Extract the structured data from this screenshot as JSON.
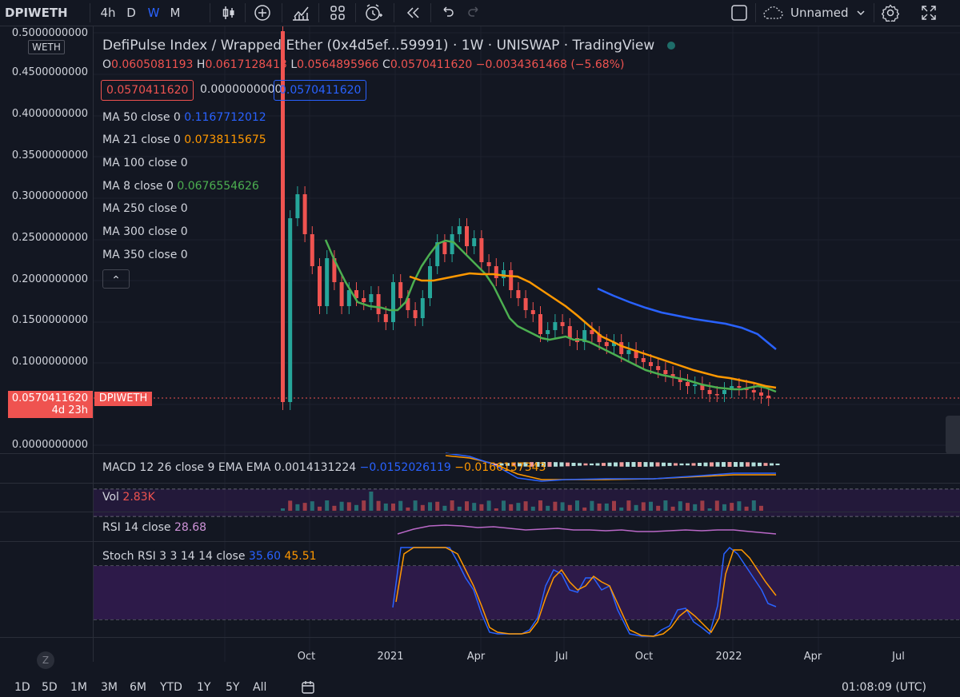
{
  "toolbar": {
    "symbol": "DPIWETH",
    "intervals": [
      "4h",
      "D",
      "W",
      "M"
    ],
    "active_interval": "W",
    "layout_name": "Unnamed"
  },
  "legend": {
    "title": "DefiPulse Index / Wrapped Ether (0x4d5ef...59991) · 1W · UNISWAP · TradingView",
    "ohlc": {
      "o_label": "O",
      "o": "0.0605081193",
      "h_label": "H",
      "h": "0.0617128413",
      "l_label": "L",
      "l": "0.0564895966",
      "c_label": "C",
      "c": "0.0570411620",
      "change": "−0.0034361468 (−5.68%)"
    },
    "bid": "0.0570411620",
    "spread": "0.0000000000",
    "ask": "0.0570411620",
    "indicators": [
      {
        "label": "MA 50 close 0",
        "value": "0.1167712012",
        "color": "#2962ff"
      },
      {
        "label": "MA 21 close 0",
        "value": "0.0738115675",
        "color": "#ff9800"
      },
      {
        "label": "MA 100 close 0",
        "value": "",
        "color": "#d1d4dc"
      },
      {
        "label": "MA 8 close 0",
        "value": "0.0676554626",
        "color": "#4caf50"
      },
      {
        "label": "MA 250 close 0",
        "value": "",
        "color": "#d1d4dc"
      },
      {
        "label": "MA 300 close 0",
        "value": "",
        "color": "#d1d4dc"
      },
      {
        "label": "MA 350 close 0",
        "value": "",
        "color": "#d1d4dc"
      }
    ],
    "collapse_glyph": "⌃"
  },
  "price_axis": {
    "currency": "WETH",
    "ticks": [
      "0.5000000000",
      "0.4500000000",
      "0.4000000000",
      "0.3500000000",
      "0.3000000000",
      "0.2500000000",
      "0.2000000000",
      "0.1500000000",
      "0.1000000000",
      "0.0570411620",
      "0.0000000000"
    ],
    "last_price_label": "0.0570411620",
    "countdown": "4d 23h",
    "series_tag": "DPIWETH"
  },
  "time_axis": {
    "ticks": [
      "Oct",
      "2021",
      "Apr",
      "Jul",
      "Oct",
      "2022",
      "Apr",
      "Jul"
    ]
  },
  "macd": {
    "label": "MACD 12 26 close 9 EMA EMA",
    "v1": "0.0014131224",
    "v2": "−0.0152026119",
    "v3": "−0.0166157343"
  },
  "volume": {
    "label": "Vol",
    "value": "2.83K"
  },
  "rsi": {
    "label": "RSI 14 close",
    "value": "28.68"
  },
  "stoch": {
    "label": "Stoch RSI 3 3 14 14 close",
    "k": "35.60",
    "d": "45.51"
  },
  "bottom_bar": {
    "ranges": [
      "1D",
      "5D",
      "1M",
      "3M",
      "6M",
      "YTD",
      "1Y",
      "5Y",
      "All"
    ],
    "clock": "01:08:09 (UTC)"
  },
  "colors": {
    "background": "#131722",
    "up": "#26a69a",
    "down": "#ef5350",
    "ma50": "#2962ff",
    "ma21": "#ff9800",
    "ma8": "#4caf50",
    "rsi": "#9c27b0"
  }
}
